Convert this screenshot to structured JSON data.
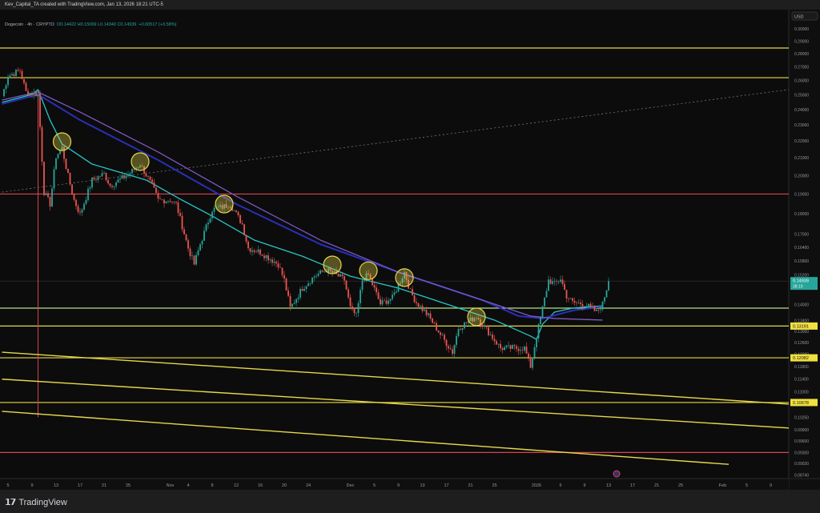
{
  "header": {
    "author_line": "Kev_Capital_TA created with TradingView.com, Jan 13, 2026 18:21 UTC-5",
    "symbol": "Dogecoin · 4h · CRYPTO",
    "ohlc": "O0.14422 H0.15069 L0.14340 C0.14939",
    "change": "+0.00517 (+3.58%)"
  },
  "footer": {
    "logo_text": "TradingView",
    "logo_icon": "tradingview-logo-icon"
  },
  "chart_data": {
    "type": "candlestick",
    "title": "Dogecoin · 4h · CRYPTO",
    "currency": "USD",
    "y_scale": "log",
    "ylim": [
      0.0874,
      0.3
    ],
    "xlim": [
      "2025-10-04",
      "2026-02-12"
    ],
    "grid": false,
    "colors": {
      "up": "#26a69a",
      "down": "#ef5350",
      "background": "#0c0c0c"
    },
    "x_ticks": [
      "5",
      "9",
      "13",
      "17",
      "21",
      "25",
      "Nov",
      "4",
      "8",
      "12",
      "16",
      "20",
      "24",
      "Dec",
      "5",
      "9",
      "13",
      "17",
      "21",
      "25",
      "2026",
      "5",
      "9",
      "13",
      "17",
      "21",
      "25",
      "Feb",
      "5",
      "9"
    ],
    "x_tick_dates": [
      "2025-10-05",
      "2025-10-09",
      "2025-10-13",
      "2025-10-17",
      "2025-10-21",
      "2025-10-25",
      "2025-11-01",
      "2025-11-04",
      "2025-11-08",
      "2025-11-12",
      "2025-11-16",
      "2025-11-20",
      "2025-11-24",
      "2025-12-01",
      "2025-12-05",
      "2025-12-09",
      "2025-12-13",
      "2025-12-17",
      "2025-12-21",
      "2025-12-25",
      "2026-01-01",
      "2026-01-05",
      "2026-01-09",
      "2026-01-13",
      "2026-01-17",
      "2026-01-21",
      "2026-01-25",
      "2026-02-01",
      "2026-02-05",
      "2026-02-09"
    ],
    "y_ticks": [
      "0.30000",
      "0.29000",
      "0.28000",
      "0.27000",
      "0.26000",
      "0.25000",
      "0.24000",
      "0.23000",
      "0.22000",
      "0.21000",
      "0.20000",
      "0.19000",
      "0.18000",
      "0.17000",
      "0.16400",
      "0.15800",
      "0.15200",
      "0.14000",
      "0.13400",
      "0.13000",
      "0.12600",
      "0.12200",
      "0.11800",
      "0.11400",
      "0.11000",
      "0.10250",
      "0.09900",
      "0.09600",
      "0.09300",
      "0.09020",
      "0.08740"
    ],
    "price": [
      [
        "2025-10-04",
        0.2491
      ],
      [
        "2025-10-05",
        0.2633
      ],
      [
        "2025-10-07",
        0.2674
      ],
      [
        "2025-10-08",
        0.2519
      ],
      [
        "2025-10-10",
        0.2502
      ],
      [
        "2025-10-11",
        0.191
      ],
      [
        "2025-10-12",
        0.1848
      ],
      [
        "2025-10-13",
        0.211
      ],
      [
        "2025-10-14",
        0.2158
      ],
      [
        "2025-10-15",
        0.1997
      ],
      [
        "2025-10-16",
        0.1868
      ],
      [
        "2025-10-17",
        0.1796
      ],
      [
        "2025-10-19",
        0.1975
      ],
      [
        "2025-10-21",
        0.201
      ],
      [
        "2025-10-22",
        0.1945
      ],
      [
        "2025-10-25",
        0.2005
      ],
      [
        "2025-10-27",
        0.2064
      ],
      [
        "2025-10-29",
        0.1945
      ],
      [
        "2025-10-30",
        0.1868
      ],
      [
        "2025-11-01",
        0.1868
      ],
      [
        "2025-11-02",
        0.1848
      ],
      [
        "2025-11-04",
        0.1636
      ],
      [
        "2025-11-05",
        0.1565
      ],
      [
        "2025-11-06",
        0.1654
      ],
      [
        "2025-11-08",
        0.182
      ],
      [
        "2025-11-10",
        0.1836
      ],
      [
        "2025-11-11",
        0.1848
      ],
      [
        "2025-11-13",
        0.1748
      ],
      [
        "2025-11-14",
        0.1636
      ],
      [
        "2025-11-16",
        0.1618
      ],
      [
        "2025-11-17",
        0.16
      ],
      [
        "2025-11-19",
        0.1565
      ],
      [
        "2025-11-20",
        0.1498
      ],
      [
        "2025-11-21",
        0.1386
      ],
      [
        "2025-11-23",
        0.1465
      ],
      [
        "2025-11-25",
        0.1514
      ],
      [
        "2025-11-27",
        0.1541
      ],
      [
        "2025-11-29",
        0.1514
      ],
      [
        "2025-11-30",
        0.1498
      ],
      [
        "2025-12-01",
        0.1386
      ],
      [
        "2025-12-02",
        0.1356
      ],
      [
        "2025-12-03",
        0.1498
      ],
      [
        "2025-12-04",
        0.1521
      ],
      [
        "2025-12-06",
        0.1402
      ],
      [
        "2025-12-08",
        0.1426
      ],
      [
        "2025-12-10",
        0.1531
      ],
      [
        "2025-12-11",
        0.1449
      ],
      [
        "2025-12-12",
        0.1408
      ],
      [
        "2025-12-14",
        0.1356
      ],
      [
        "2025-12-16",
        0.1289
      ],
      [
        "2025-12-18",
        0.1227
      ],
      [
        "2025-12-19",
        0.1312
      ],
      [
        "2025-12-22",
        0.1356
      ],
      [
        "2025-12-24",
        0.1297
      ],
      [
        "2025-12-26",
        0.1241
      ],
      [
        "2025-12-28",
        0.1241
      ],
      [
        "2025-12-30",
        0.1241
      ],
      [
        "2025-12-31",
        0.118
      ],
      [
        "2026-01-01",
        0.1283
      ],
      [
        "2026-01-02",
        0.1386
      ],
      [
        "2026-01-03",
        0.1498
      ],
      [
        "2026-01-04",
        0.1481
      ],
      [
        "2026-01-05",
        0.1504
      ],
      [
        "2026-01-06",
        0.1433
      ],
      [
        "2026-01-07",
        0.1408
      ],
      [
        "2026-01-09",
        0.1402
      ],
      [
        "2026-01-11",
        0.1371
      ],
      [
        "2026-01-12",
        0.1402
      ],
      [
        "2026-01-13",
        0.1494
      ]
    ],
    "moving_averages": [
      {
        "color": "#26c6c6",
        "points": [
          [
            "2025-10-04",
            0.2448
          ],
          [
            "2025-10-09",
            0.2502
          ],
          [
            "2025-10-10",
            0.2536
          ],
          [
            "2025-10-12",
            0.2331
          ],
          [
            "2025-10-14",
            0.2182
          ],
          [
            "2025-10-19",
            0.2064
          ],
          [
            "2025-10-28",
            0.1975
          ],
          [
            "2025-11-03",
            0.1868
          ],
          [
            "2025-11-08",
            0.1788
          ],
          [
            "2025-11-15",
            0.1673
          ],
          [
            "2025-11-23",
            0.16
          ],
          [
            "2025-12-01",
            0.1514
          ],
          [
            "2025-12-09",
            0.1465
          ],
          [
            "2025-12-17",
            0.1402
          ],
          [
            "2025-12-25",
            0.1341
          ],
          [
            "2025-12-31",
            0.1283
          ],
          [
            "2026-01-01",
            0.1271
          ],
          [
            "2026-01-02",
            0.1326
          ],
          [
            "2026-01-04",
            0.1371
          ],
          [
            "2026-01-07",
            0.1386
          ],
          [
            "2026-01-12",
            0.1395
          ]
        ]
      },
      {
        "color": "#2a2fb8",
        "points": [
          [
            "2025-10-04",
            0.2437
          ],
          [
            "2025-10-10",
            0.2502
          ],
          [
            "2025-10-17",
            0.2331
          ],
          [
            "2025-10-30",
            0.2087
          ],
          [
            "2025-11-12",
            0.1848
          ],
          [
            "2025-11-26",
            0.1654
          ],
          [
            "2025-12-09",
            0.1531
          ],
          [
            "2025-12-23",
            0.1417
          ],
          [
            "2025-12-29",
            0.1356
          ],
          [
            "2026-01-02",
            0.1347
          ],
          [
            "2026-01-07",
            0.1377
          ],
          [
            "2026-01-12",
            0.1392
          ]
        ]
      },
      {
        "color": "#7e57c2",
        "points": [
          [
            "2025-10-04",
            0.2464
          ],
          [
            "2025-10-10",
            0.2519
          ],
          [
            "2025-10-17",
            0.2383
          ],
          [
            "2025-10-30",
            0.2134
          ],
          [
            "2025-11-12",
            0.1889
          ],
          [
            "2025-11-26",
            0.1673
          ],
          [
            "2025-12-09",
            0.1531
          ],
          [
            "2025-12-23",
            0.1417
          ],
          [
            "2025-12-31",
            0.1356
          ],
          [
            "2026-01-04",
            0.1347
          ],
          [
            "2026-01-12",
            0.1341
          ]
        ]
      }
    ],
    "horizontal_levels": [
      {
        "price": 0.2845,
        "color": "#e6d84a"
      },
      {
        "price": 0.2621,
        "color": "#e6d84a"
      },
      {
        "price": 0.19,
        "color": "#d9434f"
      },
      {
        "price": 0.1386,
        "color": "#b5e08a"
      },
      {
        "price": 0.13191,
        "color": "#e6d84a",
        "label": "0.13191"
      },
      {
        "price": 0.12082,
        "color": "#e6d84a",
        "label": "0.12082"
      },
      {
        "price": 0.10678,
        "color": "#e6d84a",
        "label": "0.10678"
      },
      {
        "price": 0.093,
        "color": "#d9434f"
      }
    ],
    "trend_lines": [
      {
        "from": [
          "2025-10-04",
          0.1227
        ],
        "to": [
          "2026-02-12",
          0.1063
        ],
        "color": "#e6d84a",
        "style": "solid"
      },
      {
        "from": [
          "2025-10-04",
          0.1139
        ],
        "to": [
          "2026-02-12",
          0.0995
        ],
        "color": "#e6d84a",
        "style": "solid"
      },
      {
        "from": [
          "2025-10-04",
          0.1042
        ],
        "to": [
          "2026-02-02",
          0.09
        ],
        "color": "#e6d84a",
        "style": "solid"
      },
      {
        "from": [
          "2025-10-04",
          0.191
        ],
        "to": [
          "2026-02-12",
          0.2536
        ],
        "color": "#777777",
        "style": "dotted"
      }
    ],
    "vertical_markers": [
      {
        "date": "2025-10-10",
        "color": "#d9434f"
      }
    ],
    "circled_rejections": [
      [
        "2025-10-14",
        0.2196
      ],
      [
        "2025-10-27",
        0.2078
      ],
      [
        "2025-11-10",
        0.1848
      ],
      [
        "2025-11-28",
        0.1562
      ],
      [
        "2025-12-04",
        0.1537
      ],
      [
        "2025-12-10",
        0.1508
      ],
      [
        "2025-12-22",
        0.1353
      ]
    ],
    "last_price": {
      "value": "0.14939",
      "countdown": "38:19",
      "color": "#26a69a"
    }
  }
}
